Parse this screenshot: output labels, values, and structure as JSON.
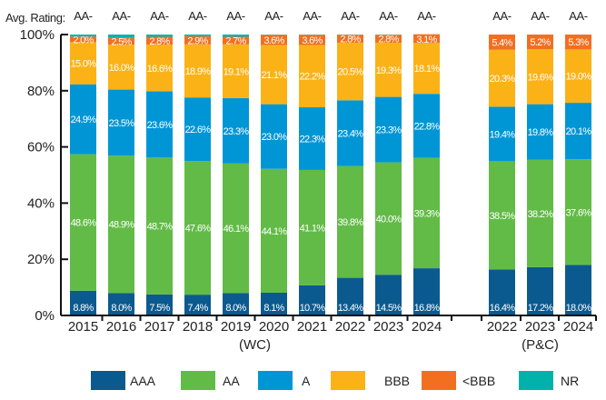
{
  "chart_data": {
    "type": "bar",
    "stacked": true,
    "rating_label": "Avg. Rating:",
    "ylim": [
      0,
      100
    ],
    "yticks": [
      "0%",
      "20%",
      "40%",
      "60%",
      "80%",
      "100%"
    ],
    "groups": [
      {
        "name": "(WC)",
        "categories": [
          "2015",
          "2016",
          "2017",
          "2018",
          "2019",
          "2020",
          "2021",
          "2022",
          "2023",
          "2024"
        ]
      },
      {
        "name": "(P&C)",
        "categories": [
          "2022",
          "2023",
          "2024"
        ]
      }
    ],
    "avg_rating": [
      "AA-",
      "AA-",
      "AA-",
      "AA-",
      "AA-",
      "AA-",
      "AA-",
      "AA-",
      "AA-",
      "AA-",
      "AA-",
      "AA-",
      "AA-"
    ],
    "series": [
      {
        "name": "AAA",
        "color": "#0b5a8f",
        "values": [
          8.8,
          8.0,
          7.5,
          7.4,
          8.0,
          8.1,
          10.7,
          13.4,
          14.5,
          16.8,
          16.4,
          17.2,
          18.0
        ]
      },
      {
        "name": "AA",
        "color": "#62bb46",
        "values": [
          48.6,
          48.9,
          48.7,
          47.6,
          46.1,
          44.1,
          41.1,
          39.8,
          40.0,
          39.3,
          38.5,
          38.2,
          37.6
        ]
      },
      {
        "name": "A",
        "color": "#0096d6",
        "values": [
          24.9,
          23.5,
          23.6,
          22.6,
          23.3,
          23.0,
          22.3,
          23.4,
          23.3,
          22.8,
          19.4,
          19.8,
          20.1
        ]
      },
      {
        "name": "BBB",
        "color": "#fbb217",
        "values": [
          15.0,
          16.0,
          16.6,
          18.9,
          19.1,
          21.1,
          22.2,
          20.5,
          19.3,
          18.1,
          20.3,
          19.6,
          19.0
        ]
      },
      {
        "name": "<BBB",
        "color": "#f26f21",
        "values": [
          2.0,
          2.5,
          2.8,
          2.9,
          2.7,
          3.6,
          3.6,
          2.8,
          2.8,
          3.1,
          5.4,
          5.2,
          5.3
        ]
      },
      {
        "name": "NR",
        "color": "#00b2a9",
        "values": [
          0.7,
          1.1,
          0.8,
          0.6,
          0.8,
          0.1,
          0.1,
          0.1,
          0.1,
          0,
          0,
          0,
          0
        ]
      }
    ],
    "labeled_series": [
      "AAA",
      "AA",
      "A",
      "BBB",
      "<BBB"
    ],
    "legend": "bottom"
  }
}
